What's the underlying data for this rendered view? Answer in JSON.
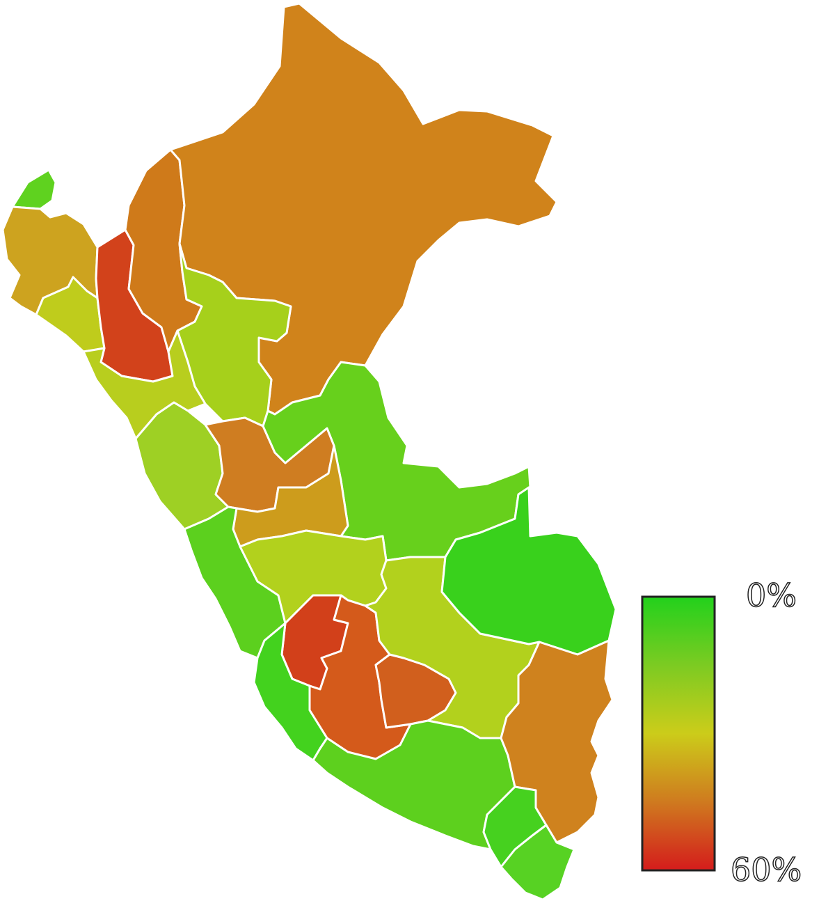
{
  "legend": {
    "min_label": "0%",
    "max_label": "60%",
    "gradient_colors": [
      "#22d11c",
      "#7ccb22",
      "#cccc1a",
      "#cf7a1f",
      "#d41c1c"
    ]
  },
  "regions": [
    {
      "id": "tumbes",
      "color": "#5fd21f"
    },
    {
      "id": "piura",
      "color": "#cda31f"
    },
    {
      "id": "lambayeque",
      "color": "#bfcc1c"
    },
    {
      "id": "cajamarca",
      "color": "#d2421b"
    },
    {
      "id": "amazonas",
      "color": "#cf7a1a"
    },
    {
      "id": "loreto",
      "color": "#d0831b"
    },
    {
      "id": "san-martin",
      "color": "#a6d01b"
    },
    {
      "id": "la-libertad",
      "color": "#b8ce1e"
    },
    {
      "id": "ancash",
      "color": "#9ed024"
    },
    {
      "id": "huanuco",
      "color": "#cf7d21"
    },
    {
      "id": "ucayali",
      "color": "#67d01c"
    },
    {
      "id": "pasco",
      "color": "#cd9c1c"
    },
    {
      "id": "lima",
      "color": "#5cd01e"
    },
    {
      "id": "junin",
      "color": "#b2d11d"
    },
    {
      "id": "huancavelica",
      "color": "#d2401a"
    },
    {
      "id": "ayacucho",
      "color": "#d45a1b"
    },
    {
      "id": "apurimac",
      "color": "#d15f1d"
    },
    {
      "id": "cusco",
      "color": "#b2d11d"
    },
    {
      "id": "madre-de-dios",
      "color": "#39d11c"
    },
    {
      "id": "ica",
      "color": "#43d21e"
    },
    {
      "id": "arequipa",
      "color": "#5dd01e"
    },
    {
      "id": "puno",
      "color": "#cf821e"
    },
    {
      "id": "moquegua",
      "color": "#46d11f"
    },
    {
      "id": "tacna",
      "color": "#57d223"
    }
  ]
}
